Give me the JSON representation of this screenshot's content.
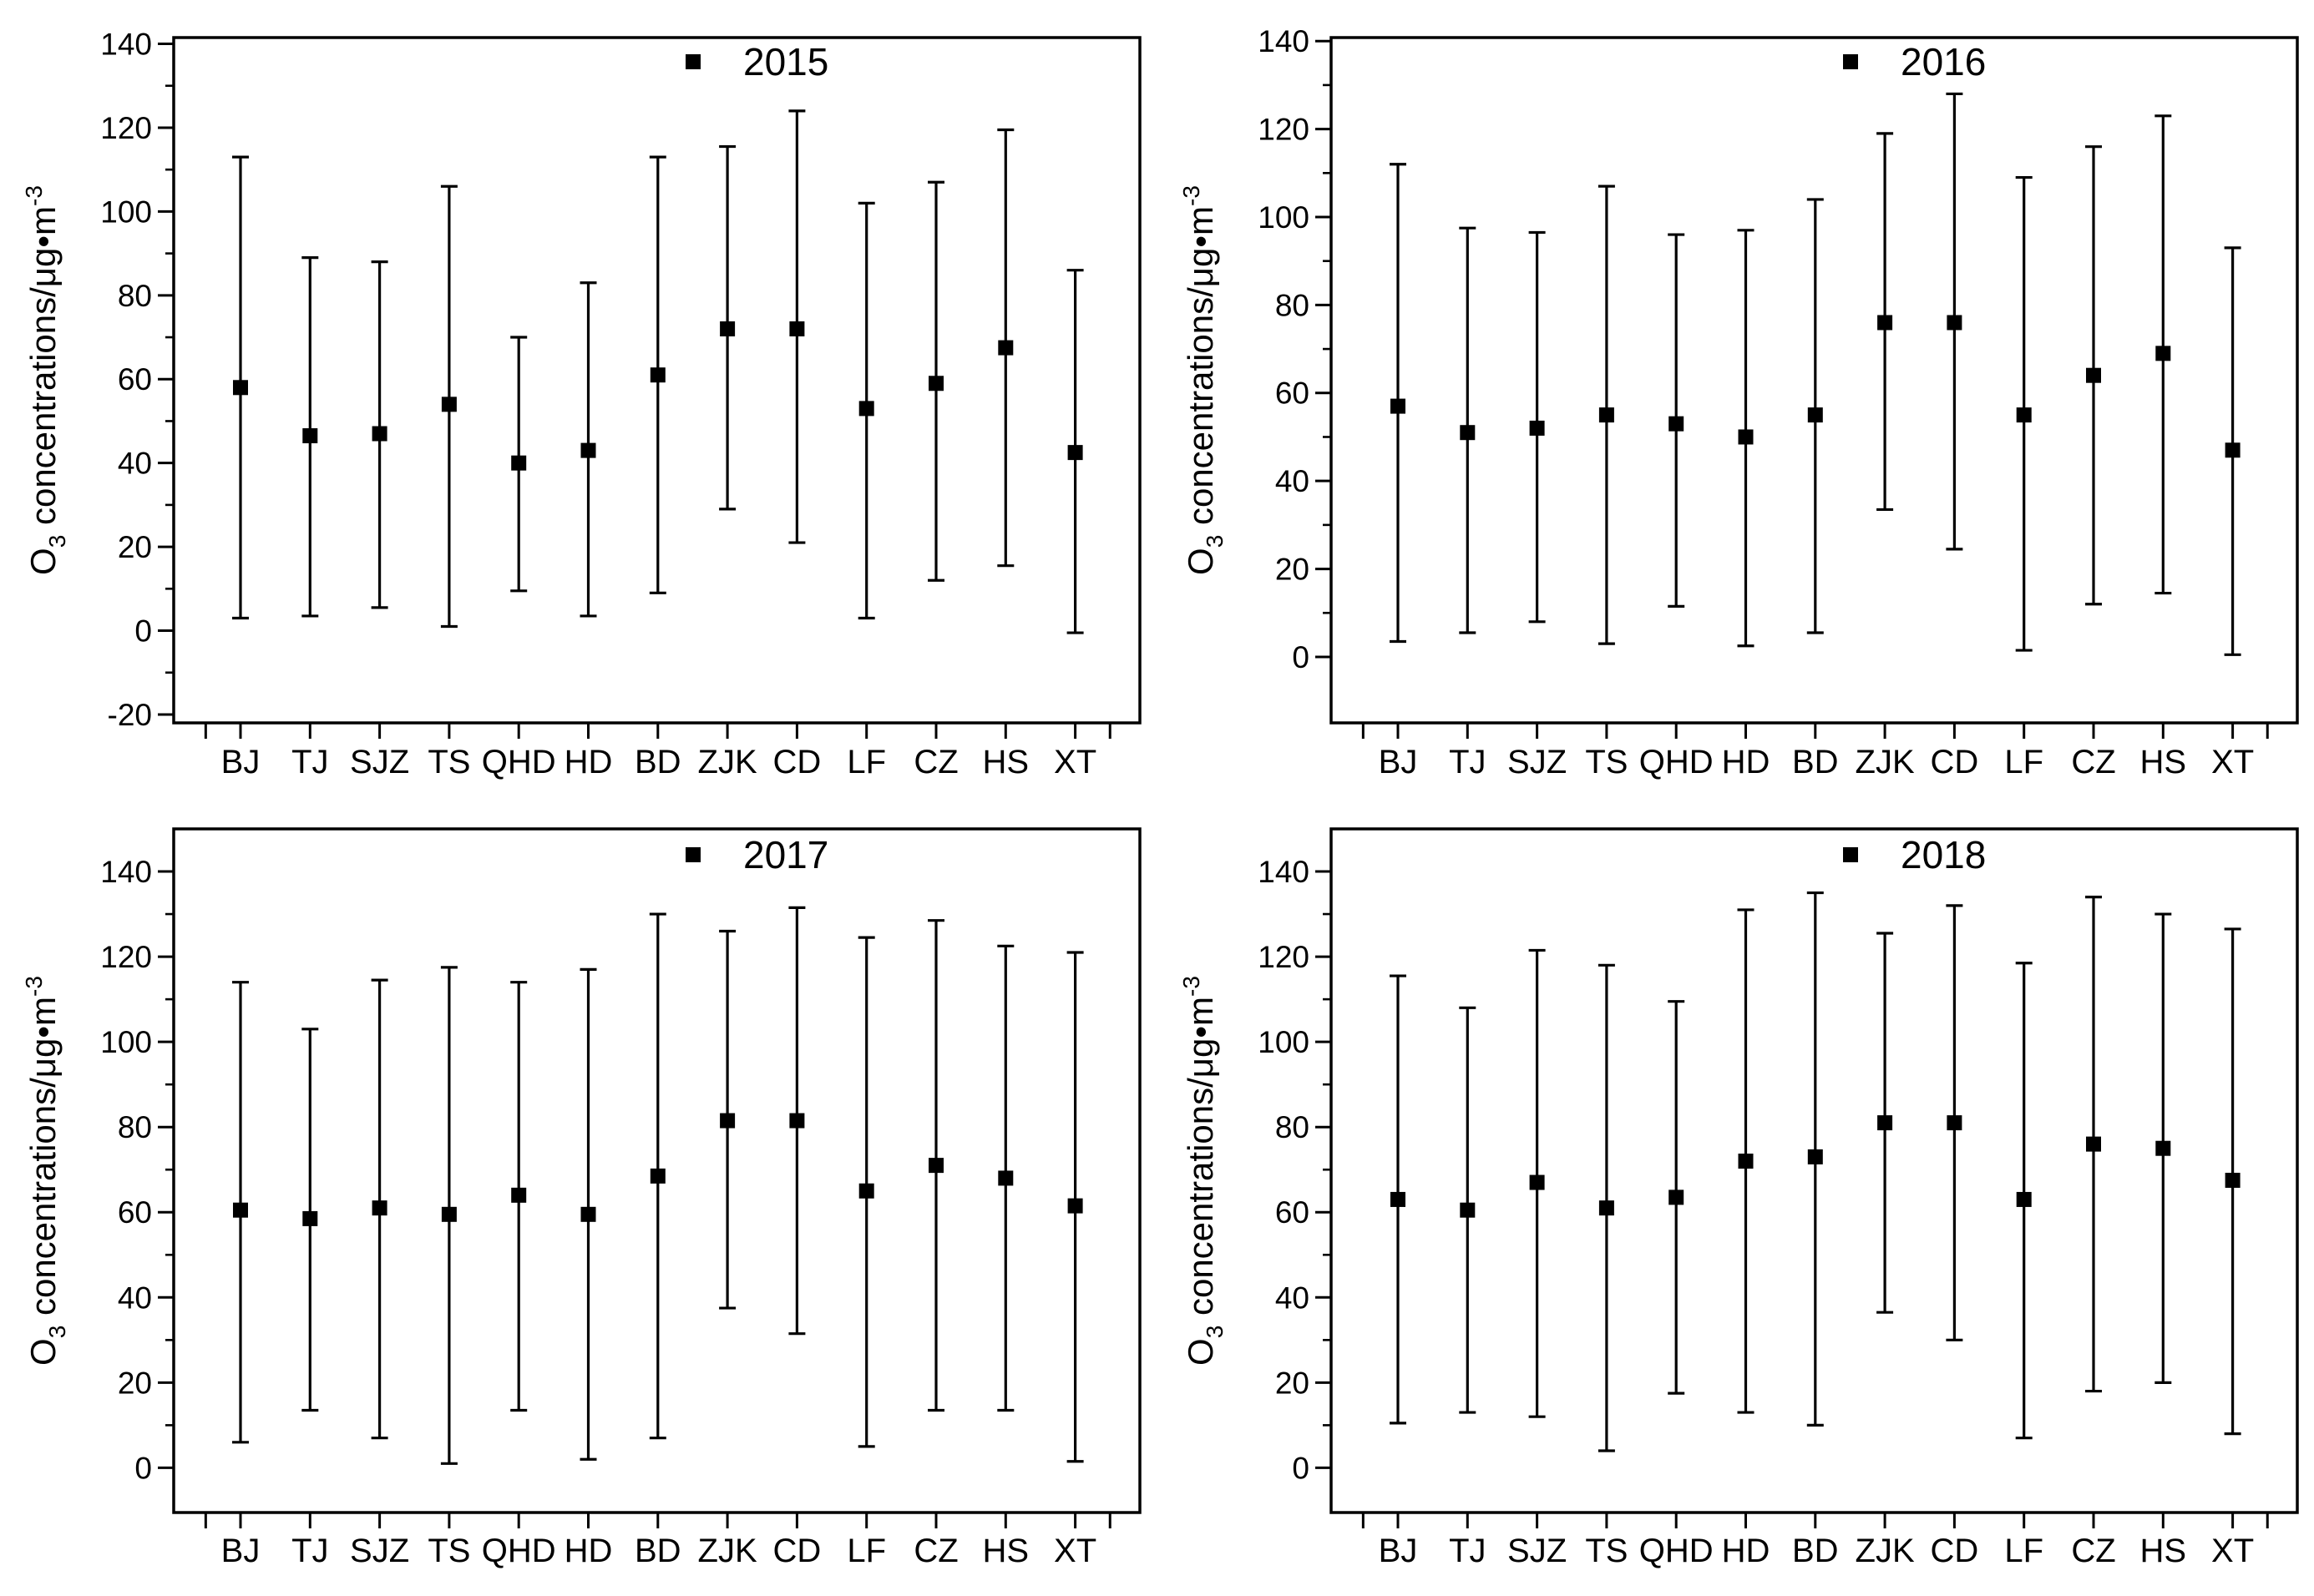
{
  "page": {
    "background": "#ffffff",
    "ink_color": "#000000"
  },
  "y_axis_label": {
    "pre": "O",
    "sub": "3",
    "mid": " concentrations/μg•m",
    "sup": "-3"
  },
  "categories": [
    "BJ",
    "TJ",
    "SJZ",
    "TS",
    "QHD",
    "HD",
    "BD",
    "ZJK",
    "CD",
    "LF",
    "CZ",
    "HS",
    "XT"
  ],
  "chart_data": [
    {
      "type": "scatter",
      "marker": "filled-square",
      "error_bars": true,
      "grid": false,
      "legend_label": "2015",
      "legend_position": "top-center",
      "ylim": [
        -22,
        141.5
      ],
      "yticks": [
        -20,
        0,
        20,
        40,
        60,
        80,
        100,
        120,
        140
      ],
      "series": [
        {
          "name": "2015",
          "mean": [
            58,
            46.5,
            47,
            54,
            40,
            43,
            61,
            72,
            72,
            53,
            59,
            67.5,
            42.5
          ],
          "lower": [
            3,
            3.5,
            5.5,
            1,
            9.5,
            3.5,
            9,
            29,
            21,
            3,
            12,
            15.5,
            -0.5
          ],
          "upper": [
            113,
            89,
            88,
            106,
            70,
            83,
            113,
            115.5,
            124,
            102,
            107,
            119.5,
            86
          ]
        }
      ]
    },
    {
      "type": "scatter",
      "marker": "filled-square",
      "error_bars": true,
      "grid": false,
      "legend_label": "2016",
      "legend_position": "top-center",
      "ylim": [
        -15,
        140.8
      ],
      "yticks": [
        0,
        20,
        40,
        60,
        80,
        100,
        120,
        140
      ],
      "series": [
        {
          "name": "2016",
          "mean": [
            57,
            51,
            52,
            55,
            53,
            50,
            55,
            76,
            76,
            55,
            64,
            69,
            47
          ],
          "lower": [
            3.5,
            5.5,
            8,
            3,
            11.5,
            2.5,
            5.5,
            33.5,
            24.5,
            1.5,
            12,
            14.5,
            0.5
          ],
          "upper": [
            112,
            97.5,
            96.5,
            107,
            96,
            97,
            104,
            119,
            128,
            109,
            116,
            123,
            93
          ]
        }
      ]
    },
    {
      "type": "scatter",
      "marker": "filled-square",
      "error_bars": true,
      "grid": false,
      "legend_label": "2017",
      "legend_position": "top-center",
      "ylim": [
        -10.5,
        150
      ],
      "yticks": [
        0,
        20,
        40,
        60,
        80,
        100,
        120,
        140
      ],
      "series": [
        {
          "name": "2017",
          "mean": [
            60.5,
            58.5,
            61,
            59.5,
            64,
            59.5,
            68.5,
            81.5,
            81.5,
            65,
            71,
            68,
            61.5
          ],
          "lower": [
            6,
            13.5,
            7,
            1,
            13.5,
            2,
            7,
            37.5,
            31.5,
            5,
            13.5,
            13.5,
            1.5
          ],
          "upper": [
            114,
            103,
            114.5,
            117.5,
            114,
            117,
            130,
            126,
            131.5,
            124.5,
            128.5,
            122.5,
            121
          ]
        }
      ]
    },
    {
      "type": "scatter",
      "marker": "filled-square",
      "error_bars": true,
      "grid": false,
      "legend_label": "2018",
      "legend_position": "top-center",
      "ylim": [
        -10.5,
        150
      ],
      "yticks": [
        0,
        20,
        40,
        60,
        80,
        100,
        120,
        140
      ],
      "series": [
        {
          "name": "2018",
          "mean": [
            63,
            60.5,
            67,
            61,
            63.5,
            72,
            73,
            81,
            81,
            63,
            76,
            75,
            67.5
          ],
          "lower": [
            10.5,
            13,
            12,
            4,
            17.5,
            13,
            10,
            36.5,
            30,
            7,
            18,
            20,
            8
          ],
          "upper": [
            115.5,
            108,
            121.5,
            118,
            109.5,
            131,
            135,
            125.5,
            132,
            118.5,
            134,
            130,
            126.5
          ]
        }
      ]
    }
  ]
}
